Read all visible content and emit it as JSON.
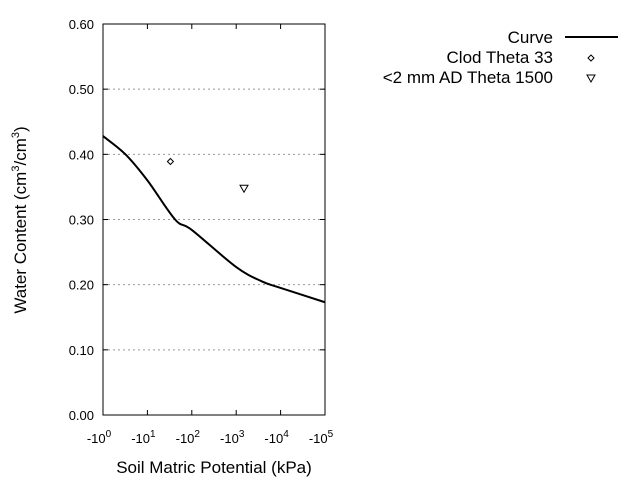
{
  "chart_data": {
    "type": "line",
    "xlabel": "Soil Matric Potential (kPa)",
    "ylabel_parts": [
      "Water Content (cm",
      "3",
      "/cm",
      "3",
      ")"
    ],
    "x_scale": "log",
    "xlim": [
      -1,
      -100000
    ],
    "ylim": [
      0,
      0.6
    ],
    "x_ticks": [
      {
        "value": -1,
        "base": "-10",
        "exp": "0"
      },
      {
        "value": -10,
        "base": "-10",
        "exp": "1"
      },
      {
        "value": -100,
        "base": "-10",
        "exp": "2"
      },
      {
        "value": -1000,
        "base": "-10",
        "exp": "3"
      },
      {
        "value": -10000,
        "base": "-10",
        "exp": "4"
      },
      {
        "value": -100000,
        "base": "-10",
        "exp": "5"
      }
    ],
    "y_ticks": [
      "0.00",
      "0.10",
      "0.20",
      "0.30",
      "0.40",
      "0.50",
      "0.60"
    ],
    "grid": "horizontal dotted",
    "legend_position": "top-right",
    "series": [
      {
        "name": "Curve",
        "type": "line",
        "color": "#000000",
        "x": [
          -1,
          -3.2,
          -10,
          -42,
          -100,
          -1000,
          -3800,
          -10000,
          -100000
        ],
        "y": [
          0.428,
          0.4,
          0.36,
          0.3,
          0.284,
          0.227,
          0.205,
          0.195,
          0.173
        ]
      },
      {
        "name": "Clod Theta 33",
        "type": "scatter",
        "marker": "diamond",
        "x": [
          -33
        ],
        "y": [
          0.389
        ]
      },
      {
        "name": "<2 mm AD Theta 1500",
        "type": "scatter",
        "marker": "triangle-down",
        "x": [
          -1500
        ],
        "y": [
          0.348
        ]
      }
    ]
  }
}
